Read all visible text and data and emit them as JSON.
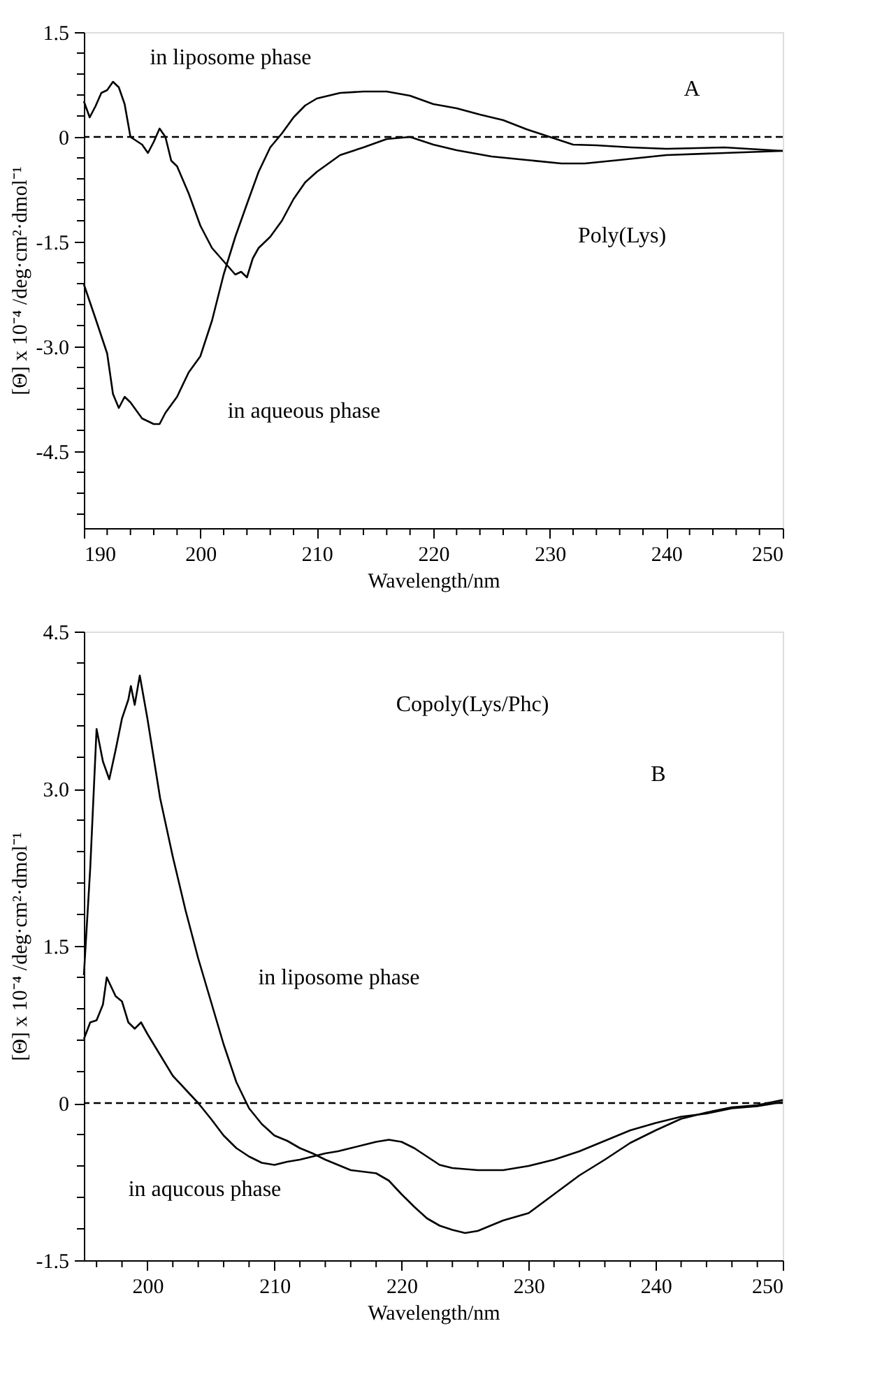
{
  "chart_data": [
    {
      "type": "line",
      "xlabel": "Wavelength/nm",
      "ylabel": "[Θ] x 10⁻⁴ /deg·cm²·dmol⁻¹",
      "xlim": [
        190,
        250
      ],
      "ylim": [
        -5.6,
        1.5
      ],
      "xticks": [
        190,
        {
          "value": 192,
          "label": null
        },
        {
          "value": 194,
          "label": null
        },
        {
          "value": 196,
          "label": null
        },
        {
          "value": 198,
          "label": null
        },
        200,
        {
          "value": 202,
          "label": null
        },
        {
          "value": 204,
          "label": null
        },
        {
          "value": 206,
          "label": null
        },
        {
          "value": 208,
          "label": null
        },
        210,
        {
          "value": 212,
          "label": null
        },
        {
          "value": 214,
          "label": null
        },
        {
          "value": 216,
          "label": null
        },
        {
          "value": 218,
          "label": null
        },
        220,
        {
          "value": 222,
          "label": null
        },
        {
          "value": 224,
          "label": null
        },
        {
          "value": 226,
          "label": null
        },
        {
          "value": 228,
          "label": null
        },
        230,
        {
          "value": 232,
          "label": null
        },
        {
          "value": 234,
          "label": null
        },
        {
          "value": 236,
          "label": null
        },
        {
          "value": 238,
          "label": null
        },
        240,
        {
          "value": 242,
          "label": null
        },
        {
          "value": 244,
          "label": null
        },
        {
          "value": 246,
          "label": null
        },
        {
          "value": 248,
          "label": null
        },
        250
      ],
      "yticks": [
        1.5,
        {
          "value": 1.2,
          "label": null
        },
        {
          "value": 0.9,
          "label": null
        },
        {
          "value": 0.6,
          "label": null
        },
        {
          "value": 0.3,
          "label": null
        },
        0,
        {
          "value": -0.3,
          "label": null
        },
        {
          "value": -0.6,
          "label": null
        },
        {
          "value": -0.9,
          "label": null
        },
        {
          "value": -1.2,
          "label": null
        },
        -1.5,
        {
          "value": -1.8,
          "label": null
        },
        {
          "value": -2.1,
          "label": null
        },
        {
          "value": -2.4,
          "label": null
        },
        {
          "value": -2.7,
          "label": null
        },
        {
          "value": -3,
          "label": "-3.0"
        },
        {
          "value": -3.3,
          "label": null
        },
        {
          "value": -3.6,
          "label": null
        },
        {
          "value": -3.9,
          "label": null
        },
        {
          "value": -4.2,
          "label": null
        },
        -4.5,
        {
          "value": -4.8,
          "label": null
        },
        {
          "value": -5.1,
          "label": null
        },
        {
          "value": -5.4,
          "label": null
        }
      ],
      "grid": false,
      "legend": false,
      "line_style": "solid",
      "marker": "none",
      "series": [
        {
          "name": "in liposome phase",
          "color": "#000000",
          "x": [
            190,
            190.5,
            191,
            191.5,
            192,
            192.5,
            193,
            193.5,
            194,
            195,
            195.5,
            196,
            196.5,
            197,
            197.5,
            198,
            199,
            200,
            201,
            202,
            203,
            203.5,
            204,
            204.5,
            205,
            206,
            207,
            208,
            209,
            210,
            212,
            214,
            216,
            218,
            220,
            222,
            225,
            228,
            231,
            233,
            236,
            240,
            245,
            250
          ],
          "values": [
            0.51,
            0.28,
            0.44,
            0.63,
            0.67,
            0.79,
            0.71,
            0.47,
            0,
            -0.11,
            -0.23,
            -0.07,
            0.12,
            0,
            -0.34,
            -0.42,
            -0.81,
            -1.27,
            -1.59,
            -1.78,
            -1.97,
            -1.93,
            -2.01,
            -1.74,
            -1.59,
            -1.43,
            -1.2,
            -0.89,
            -0.65,
            -0.5,
            -0.26,
            -0.15,
            -0.03,
            0,
            -0.11,
            -0.19,
            -0.28,
            -0.33,
            -0.38,
            -0.38,
            -0.33,
            -0.26,
            -0.23,
            -0.2
          ]
        },
        {
          "name": "in aqueous phase",
          "color": "#000000",
          "x": [
            190,
            191,
            192,
            192.5,
            193,
            193.5,
            194,
            195,
            196,
            196.5,
            197,
            198,
            199,
            200,
            201,
            202,
            203,
            204,
            205,
            206,
            207,
            208,
            209,
            210,
            212,
            214,
            216,
            218,
            220,
            222,
            224,
            226,
            228,
            230,
            232,
            234,
            237,
            240,
            245,
            250
          ],
          "values": [
            -2.11,
            -2.6,
            -3.1,
            -3.68,
            -3.88,
            -3.72,
            -3.8,
            -4.03,
            -4.11,
            -4.11,
            -3.95,
            -3.72,
            -3.37,
            -3.14,
            -2.63,
            -1.97,
            -1.43,
            -0.96,
            -0.5,
            -0.15,
            0.05,
            0.28,
            0.45,
            0.55,
            0.63,
            0.65,
            0.65,
            0.59,
            0.47,
            0.41,
            0.32,
            0.24,
            0.11,
            0,
            -0.11,
            -0.12,
            -0.15,
            -0.17,
            -0.15,
            -0.2
          ]
        }
      ],
      "ref_lines": [
        {
          "axis": "y",
          "value": 0,
          "color": "#000000",
          "line_style": "dashed"
        }
      ],
      "annotations": [
        "A",
        "Poly(Lys)"
      ]
    },
    {
      "type": "line",
      "xlabel": "Wavelength/nm",
      "ylabel": "[Θ] x 10⁻⁴ /deg·cm²·dmol⁻¹",
      "xlim": [
        195,
        250
      ],
      "ylim": [
        -1.5,
        4.5
      ],
      "xticks": [
        {
          "value": 196,
          "label": null
        },
        {
          "value": 198,
          "label": null
        },
        200,
        {
          "value": 202,
          "label": null
        },
        {
          "value": 204,
          "label": null
        },
        {
          "value": 206,
          "label": null
        },
        {
          "value": 208,
          "label": null
        },
        210,
        {
          "value": 212,
          "label": null
        },
        {
          "value": 214,
          "label": null
        },
        {
          "value": 216,
          "label": null
        },
        {
          "value": 218,
          "label": null
        },
        220,
        {
          "value": 222,
          "label": null
        },
        {
          "value": 224,
          "label": null
        },
        {
          "value": 226,
          "label": null
        },
        {
          "value": 228,
          "label": null
        },
        230,
        {
          "value": 232,
          "label": null
        },
        {
          "value": 234,
          "label": null
        },
        {
          "value": 236,
          "label": null
        },
        {
          "value": 238,
          "label": null
        },
        240,
        {
          "value": 242,
          "label": null
        },
        {
          "value": 244,
          "label": null
        },
        {
          "value": 246,
          "label": null
        },
        {
          "value": 248,
          "label": null
        },
        250
      ],
      "yticks": [
        4.5,
        {
          "value": 4.2,
          "label": null
        },
        {
          "value": 3.9,
          "label": null
        },
        {
          "value": 3.6,
          "label": null
        },
        {
          "value": 3.3,
          "label": null
        },
        {
          "value": 3,
          "label": "3.0"
        },
        {
          "value": 2.7,
          "label": null
        },
        {
          "value": 2.4,
          "label": null
        },
        {
          "value": 2.1,
          "label": null
        },
        {
          "value": 1.8,
          "label": null
        },
        1.5,
        {
          "value": 1.2,
          "label": null
        },
        {
          "value": 0.9,
          "label": null
        },
        {
          "value": 0.6,
          "label": null
        },
        {
          "value": 0.3,
          "label": null
        },
        0,
        {
          "value": -0.3,
          "label": null
        },
        {
          "value": -0.6,
          "label": null
        },
        {
          "value": -0.9,
          "label": null
        },
        {
          "value": -1.2,
          "label": null
        },
        -1.5
      ],
      "grid": false,
      "legend": false,
      "line_style": "solid",
      "marker": "none",
      "series": [
        {
          "name": "in liposome phase",
          "color": "#000000",
          "x": [
            195,
            195.5,
            196,
            196.5,
            197,
            197.5,
            198,
            198.5,
            198.7,
            199,
            199.4,
            200,
            201,
            202,
            203,
            204,
            205,
            206,
            207,
            208,
            209,
            210,
            211,
            212,
            213,
            214,
            215,
            216,
            218,
            219,
            220,
            221,
            222,
            223,
            224,
            225,
            226,
            227,
            228,
            230,
            232,
            234,
            236,
            238,
            240,
            242,
            244,
            246,
            248,
            250
          ],
          "values": [
            1.22,
            2.24,
            3.57,
            3.26,
            3.09,
            3.37,
            3.67,
            3.85,
            3.98,
            3.8,
            4.08,
            3.67,
            2.91,
            2.35,
            1.84,
            1.38,
            0.97,
            0.56,
            0.2,
            -0.05,
            -0.2,
            -0.31,
            -0.36,
            -0.43,
            -0.48,
            -0.54,
            -0.59,
            -0.64,
            -0.67,
            -0.74,
            -0.87,
            -0.99,
            -1.1,
            -1.17,
            -1.21,
            -1.24,
            -1.22,
            -1.17,
            -1.12,
            -1.05,
            -0.87,
            -0.69,
            -0.54,
            -0.38,
            -0.26,
            -0.15,
            -0.09,
            -0.04,
            -0.02,
            0.03
          ]
        },
        {
          "name": "in aqucous phase",
          "color": "#000000",
          "x": [
            195,
            195.5,
            196,
            196.5,
            196.8,
            197.5,
            198,
            198.5,
            199,
            199.5,
            200,
            201,
            202,
            203,
            204,
            205,
            206,
            207,
            208,
            209,
            210,
            211,
            212,
            213,
            214,
            215,
            216,
            217,
            218,
            219,
            220,
            221,
            222,
            223,
            224,
            226,
            228,
            230,
            232,
            234,
            236,
            238,
            240,
            242,
            244,
            246,
            248,
            250
          ],
          "values": [
            0.61,
            0.77,
            0.79,
            0.94,
            1.2,
            1.02,
            0.97,
            0.77,
            0.71,
            0.77,
            0.66,
            0.46,
            0.26,
            0.13,
            0,
            -0.15,
            -0.31,
            -0.43,
            -0.51,
            -0.57,
            -0.59,
            -0.56,
            -0.54,
            -0.51,
            -0.48,
            -0.46,
            -0.43,
            -0.4,
            -0.37,
            -0.35,
            -0.37,
            -0.43,
            -0.51,
            -0.59,
            -0.62,
            -0.64,
            -0.64,
            -0.6,
            -0.54,
            -0.46,
            -0.36,
            -0.26,
            -0.19,
            -0.13,
            -0.1,
            -0.05,
            -0.03,
            0.01
          ]
        }
      ],
      "ref_lines": [
        {
          "axis": "y",
          "value": 0,
          "color": "#000000",
          "line_style": "dashed"
        }
      ],
      "annotations": [
        "Copoly(Lys/Phc)",
        "B"
      ]
    }
  ]
}
